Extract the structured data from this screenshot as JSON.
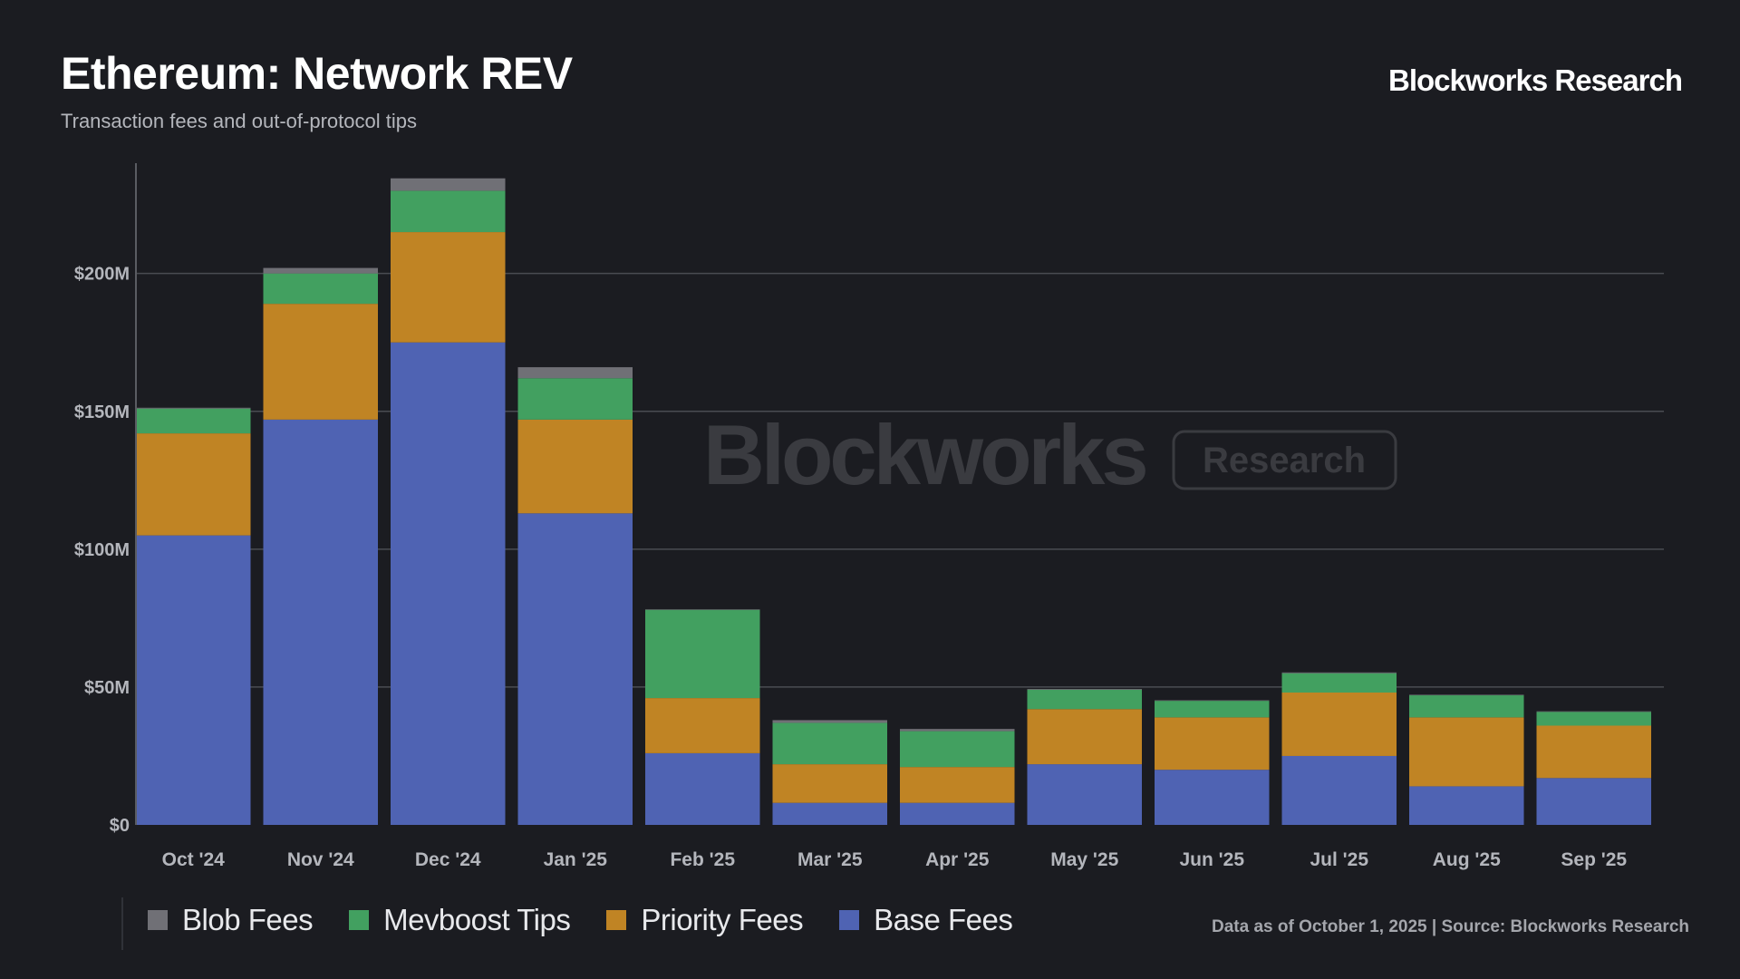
{
  "header": {
    "title": "Ethereum: Network REV",
    "subtitle": "Transaction fees and out-of-protocol tips",
    "brand": "Blockworks Research"
  },
  "watermark": {
    "wordmark": "Blockworks",
    "tag": "Research"
  },
  "footnote": "Data as of October 1, 2025 | Source: Blockworks Research",
  "colors": {
    "background": "#1b1c21",
    "blob_fees": "#707076",
    "mevboost_tips": "#42a060",
    "priority_fees": "#c08424",
    "base_fees": "#4f63b3",
    "gridline": "#4a4c52"
  },
  "chart_data": {
    "type": "bar",
    "stacked": true,
    "title": "Ethereum: Network REV",
    "subtitle": "Transaction fees and out-of-protocol tips",
    "categories": [
      "Oct '24",
      "Nov '24",
      "Dec '24",
      "Jan '25",
      "Feb '25",
      "Mar '25",
      "Apr '25",
      "May '25",
      "Jun '25",
      "Jul '25",
      "Aug '25",
      "Sep '25"
    ],
    "series": [
      {
        "name": "Base Fees",
        "color": "#4f63b3",
        "values": [
          105,
          147,
          175,
          113,
          26,
          8,
          8,
          22,
          20,
          25,
          14,
          17
        ]
      },
      {
        "name": "Priority Fees",
        "color": "#c08424",
        "values": [
          37,
          42,
          40,
          34,
          20,
          14,
          13,
          20,
          19,
          23,
          25,
          19
        ]
      },
      {
        "name": "Mevboost Tips",
        "color": "#42a060",
        "values": [
          9,
          11,
          15,
          15,
          32,
          15,
          13,
          7,
          6,
          7,
          8,
          5
        ]
      },
      {
        "name": "Blob Fees",
        "color": "#707076",
        "values": [
          0.3,
          2,
          4.5,
          4,
          0.2,
          1,
          0.8,
          0.3,
          0.2,
          0.3,
          0.2,
          0.2
        ]
      }
    ],
    "legend_order": [
      "Blob Fees",
      "Mevboost Tips",
      "Priority Fees",
      "Base Fees"
    ],
    "ylim": [
      0,
      240
    ],
    "yticks": [
      0,
      50,
      100,
      150,
      200
    ],
    "ytick_labels": [
      "$0",
      "$50M",
      "$100M",
      "$150M",
      "$200M"
    ],
    "xlabel": "",
    "ylabel": "",
    "grid": true,
    "legend_position": "bottom-left"
  }
}
